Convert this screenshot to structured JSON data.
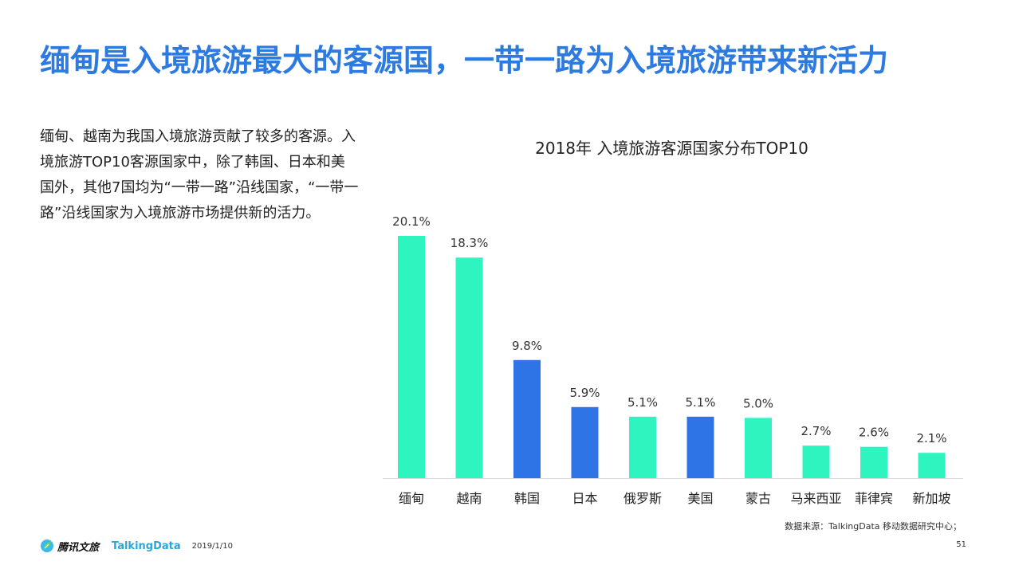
{
  "slide": {
    "title": "缅甸是入境旅游最大的客源国，一带一路为入境旅游带来新活力",
    "body": "缅甸、越南为我国入境旅游贡献了较多的客源。入境旅游TOP10客源国家中，除了韩国、日本和美国外，其他7国均为“一带一路”沿线国家，“一带一路”沿线国家为入境旅游市场提供新的活力。"
  },
  "chart_data": {
    "type": "bar",
    "title": "2018年 入境旅游客源国家分布TOP10",
    "categories": [
      "缅甸",
      "越南",
      "韩国",
      "日本",
      "俄罗斯",
      "美国",
      "蒙古",
      "马来西亚",
      "菲律宾",
      "新加坡"
    ],
    "values": [
      20.1,
      18.3,
      9.8,
      5.9,
      5.1,
      5.1,
      5.0,
      2.7,
      2.6,
      2.1
    ],
    "data_labels": [
      "20.1%",
      "18.3%",
      "9.8%",
      "5.9%",
      "5.1%",
      "5.1%",
      "5.0%",
      "2.7%",
      "2.6%",
      "2.1%"
    ],
    "belt_and_road": [
      true,
      true,
      false,
      false,
      true,
      false,
      true,
      true,
      true,
      true
    ],
    "ylim": [
      0,
      20.1
    ],
    "grid": false,
    "colors": {
      "belt_and_road": "#2ef5c0",
      "other": "#2e74e6"
    }
  },
  "footer": {
    "source": "数据来源：TalkingData 移动数据研究中心；",
    "logo1": "腾讯文旅",
    "logo2": "TalkingData",
    "date": "2019/1/10",
    "page": "51"
  }
}
